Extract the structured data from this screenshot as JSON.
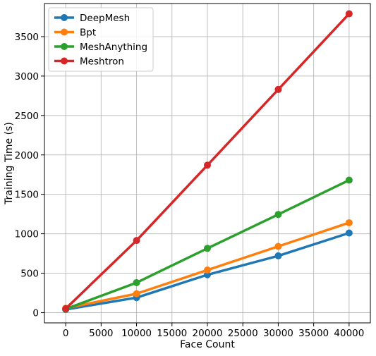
{
  "chart_data": {
    "type": "line",
    "title": "",
    "xlabel": "Face Count",
    "ylabel": "Training Time (s)",
    "xlim": [
      -3000,
      43000
    ],
    "ylim": [
      -130,
      3920
    ],
    "xticks": [
      0,
      5000,
      10000,
      15000,
      20000,
      25000,
      30000,
      35000,
      40000
    ],
    "yticks": [
      0,
      500,
      1000,
      1500,
      2000,
      2500,
      3000,
      3500
    ],
    "grid": true,
    "legend_position": "top-left",
    "x": [
      0,
      10000,
      20000,
      30000,
      40000
    ],
    "series": [
      {
        "name": "DeepMesh",
        "color": "#1f77b4",
        "values": [
          40,
          190,
          480,
          720,
          1010
        ]
      },
      {
        "name": "Bpt",
        "color": "#ff7f0e",
        "values": [
          55,
          240,
          540,
          840,
          1140
        ]
      },
      {
        "name": "MeshAnything",
        "color": "#2ca02c",
        "values": [
          45,
          380,
          815,
          1245,
          1680
        ]
      },
      {
        "name": "Meshtron",
        "color": "#d62728",
        "values": [
          50,
          915,
          1870,
          2830,
          3790
        ]
      }
    ]
  }
}
